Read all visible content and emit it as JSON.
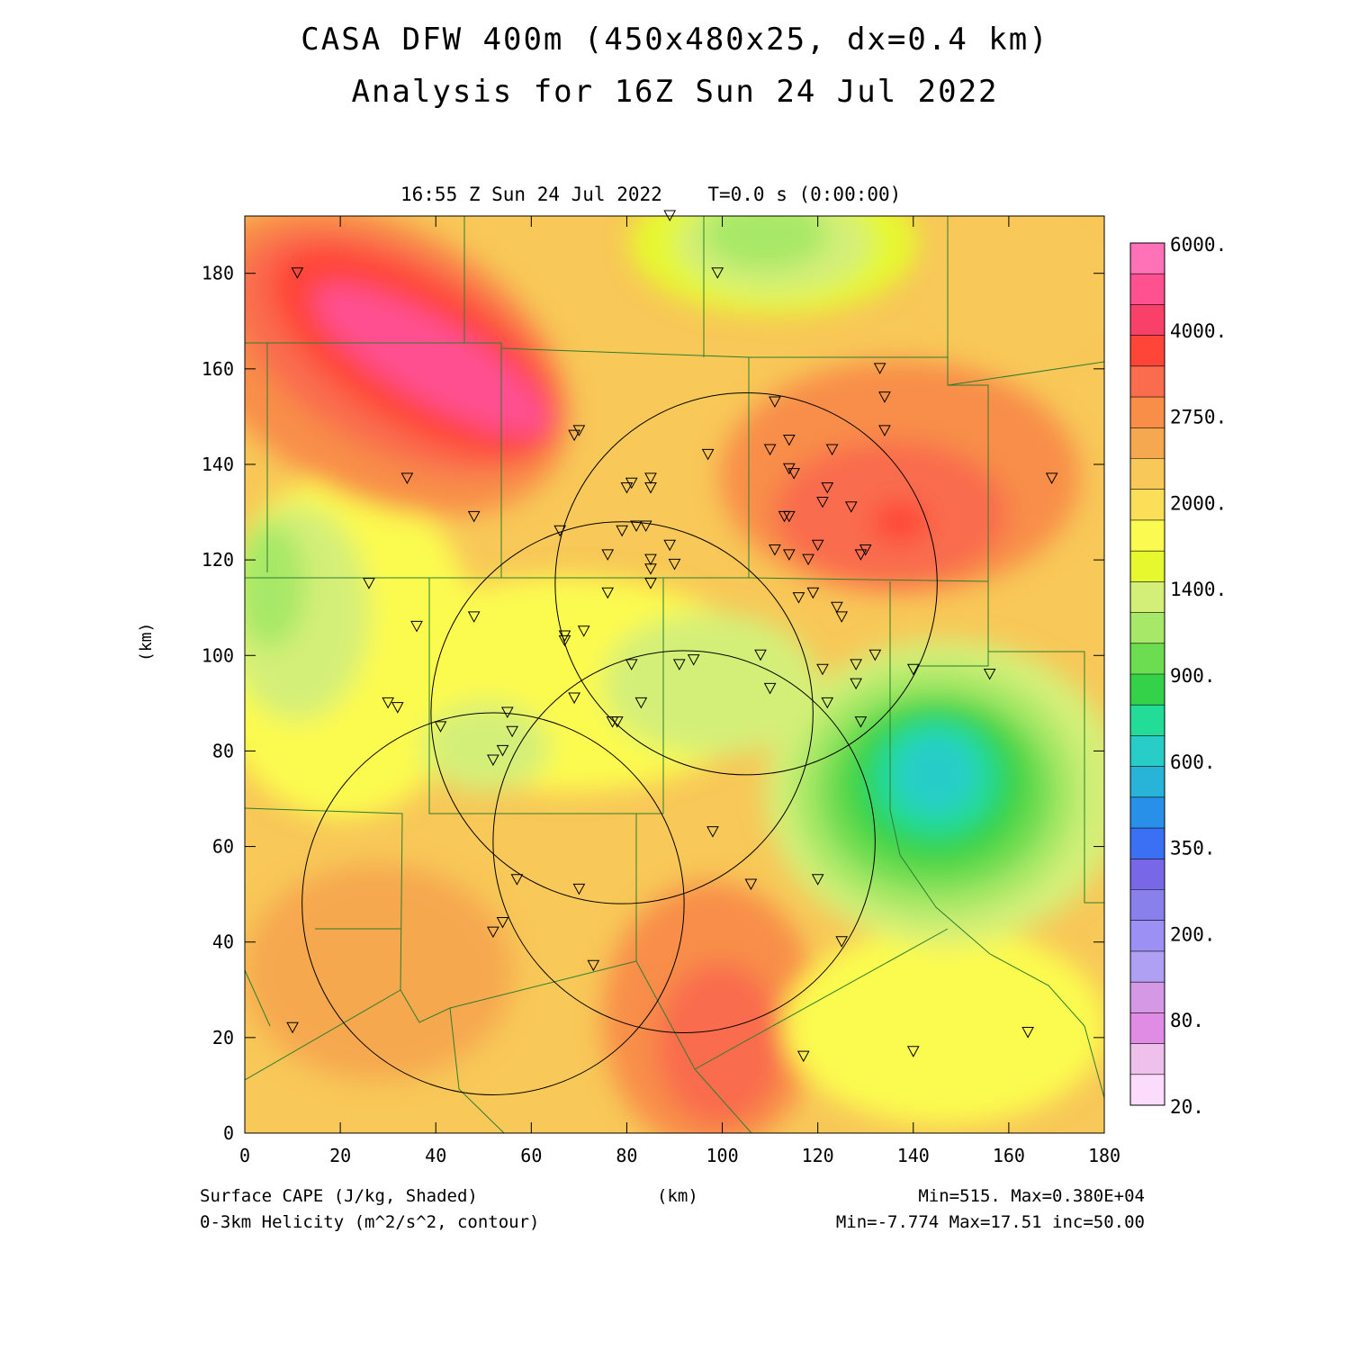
{
  "title": {
    "line1": "CASA DFW 400m (450x480x25, dx=0.4 km)",
    "line2": "Analysis for 16Z Sun 24 Jul 2022"
  },
  "plot": {
    "time_label": "16:55 Z Sun 24 Jul 2022    T=0.0 s (0:00:00)",
    "y_axis_label": "(km)",
    "x_axis_label": "(km)",
    "x_ticks": [
      "0",
      "20",
      "40",
      "60",
      "80",
      "100",
      "120",
      "140",
      "160",
      "180"
    ],
    "y_ticks": [
      "0",
      "20",
      "40",
      "60",
      "80",
      "100",
      "120",
      "140",
      "160",
      "180"
    ],
    "x_range_km": [
      0,
      180
    ],
    "y_range_km": [
      0,
      192
    ]
  },
  "captions": {
    "shaded": "Surface CAPE (J/kg, Shaded)",
    "contour": "0-3km Helicity (m^2/s^2, contour)",
    "shaded_stats": "Min=515. Max=0.380E+04",
    "contour_stats": "Min=-7.774 Max=17.51 inc=50.00"
  },
  "colorbar": {
    "labels": [
      "6000.",
      "4000.",
      "2750.",
      "2000.",
      "1400.",
      "900.",
      "600.",
      "350.",
      "200.",
      "80.",
      "20."
    ],
    "colors": [
      "#ff72b8",
      "#ff5090",
      "#f94068",
      "#ff4438",
      "#f96c4e",
      "#f88e48",
      "#f6a850",
      "#f8c858",
      "#fcdf58",
      "#fbfa50",
      "#e6f82e",
      "#d4ef78",
      "#a8e868",
      "#6cdc50",
      "#34d248",
      "#22dc98",
      "#28cdc8",
      "#28b4d8",
      "#2890e8",
      "#3a70f4",
      "#7868e8",
      "#8a80ec",
      "#9d90f4",
      "#b0a0f4",
      "#d498e4",
      "#e08ce4",
      "#f0c0ec",
      "#fcdcfc"
    ]
  },
  "stations_km": [
    [
      11,
      180
    ],
    [
      34,
      137
    ],
    [
      48,
      129
    ],
    [
      70,
      147
    ],
    [
      69,
      146
    ],
    [
      66,
      126
    ],
    [
      26,
      115
    ],
    [
      36,
      106
    ],
    [
      48,
      108
    ],
    [
      67,
      104
    ],
    [
      67,
      103
    ],
    [
      71,
      105
    ],
    [
      30,
      90
    ],
    [
      32,
      89
    ],
    [
      41,
      85
    ],
    [
      55,
      88
    ],
    [
      56,
      84
    ],
    [
      54,
      80
    ],
    [
      52,
      78
    ],
    [
      69,
      91
    ],
    [
      78,
      86
    ],
    [
      77,
      86
    ],
    [
      83,
      90
    ],
    [
      81,
      98
    ],
    [
      91,
      98
    ],
    [
      94,
      99
    ],
    [
      108,
      100
    ],
    [
      110,
      93
    ],
    [
      121,
      97
    ],
    [
      122,
      90
    ],
    [
      128,
      94
    ],
    [
      128,
      98
    ],
    [
      132,
      100
    ],
    [
      129,
      86
    ],
    [
      140,
      97
    ],
    [
      156,
      96
    ],
    [
      57,
      53
    ],
    [
      70,
      51
    ],
    [
      52,
      42
    ],
    [
      54,
      44
    ],
    [
      73,
      35
    ],
    [
      98,
      63
    ],
    [
      106,
      52
    ],
    [
      120,
      53
    ],
    [
      125,
      40
    ],
    [
      117,
      16
    ],
    [
      140,
      17
    ],
    [
      164,
      21
    ],
    [
      10,
      22
    ],
    [
      76,
      113
    ],
    [
      79,
      126
    ],
    [
      82,
      127
    ],
    [
      84,
      127
    ],
    [
      76,
      121
    ],
    [
      85,
      120
    ],
    [
      85,
      118
    ],
    [
      85,
      115
    ],
    [
      90,
      119
    ],
    [
      89,
      123
    ],
    [
      80,
      135
    ],
    [
      81,
      136
    ],
    [
      85,
      135
    ],
    [
      85,
      137
    ],
    [
      97,
      142
    ],
    [
      99,
      180
    ],
    [
      89,
      192
    ],
    [
      111,
      153
    ],
    [
      110,
      143
    ],
    [
      114,
      145
    ],
    [
      114,
      139
    ],
    [
      115,
      138
    ],
    [
      113,
      129
    ],
    [
      114,
      129
    ],
    [
      111,
      122
    ],
    [
      114,
      121
    ],
    [
      118,
      120
    ],
    [
      120,
      123
    ],
    [
      116,
      112
    ],
    [
      119,
      113
    ],
    [
      124,
      110
    ],
    [
      125,
      108
    ],
    [
      121,
      132
    ],
    [
      122,
      135
    ],
    [
      123,
      143
    ],
    [
      127,
      131
    ],
    [
      129,
      121
    ],
    [
      130,
      122
    ],
    [
      133,
      160
    ],
    [
      134,
      154
    ],
    [
      134,
      147
    ],
    [
      169,
      137
    ]
  ],
  "helicity_circles_km": [
    {
      "cx": 105,
      "cy": 115,
      "r": 40
    },
    {
      "cx": 79,
      "cy": 88,
      "r": 40
    },
    {
      "cx": 52,
      "cy": 48,
      "r": 40
    },
    {
      "cx": 92,
      "cy": 61,
      "r": 40
    }
  ]
}
